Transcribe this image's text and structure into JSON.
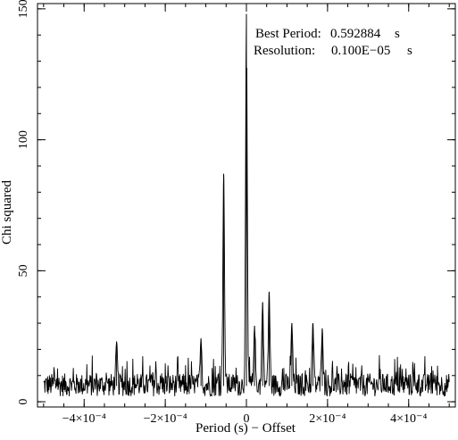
{
  "chart_data": {
    "type": "line",
    "title": "",
    "xlabel": "Period (s) − Offset",
    "ylabel": "Chi squared",
    "xlim": [
      -0.000515,
      0.000515
    ],
    "ylim": [
      -2,
      152
    ],
    "x_ticks": [
      {
        "value": -0.0004,
        "label": "−4×10⁻⁴"
      },
      {
        "value": -0.0002,
        "label": "−2×10⁻⁴"
      },
      {
        "value": 0,
        "label": "0"
      },
      {
        "value": 0.0002,
        "label": "2×10⁻⁴"
      },
      {
        "value": 0.0004,
        "label": "4×10⁻⁴"
      }
    ],
    "y_ticks": [
      {
        "value": 0,
        "label": "0"
      },
      {
        "value": 50,
        "label": "50"
      },
      {
        "value": 100,
        "label": "100"
      },
      {
        "value": 150,
        "label": "150"
      }
    ],
    "grid": false,
    "legend": "none",
    "annotations": [
      {
        "label": "Best Period:",
        "value": "0.592884",
        "unit": "s"
      },
      {
        "label": "Resolution:",
        "value": "0.100E−05",
        "unit": "s"
      }
    ],
    "series": [
      {
        "color": "#000000",
        "x_range": [
          -0.0005,
          0.0005
        ],
        "noise_level": [
          2,
          18
        ],
        "peaks": [
          {
            "x": 0.0,
            "y": 148
          },
          {
            "x": -5.6e-05,
            "y": 87
          },
          {
            "x": 5.6e-05,
            "y": 42
          },
          {
            "x": 4e-05,
            "y": 38
          },
          {
            "x": 0.000164,
            "y": 30
          },
          {
            "x": 0.000112,
            "y": 30
          },
          {
            "x": 2e-05,
            "y": 29
          },
          {
            "x": 0.000187,
            "y": 28
          },
          {
            "x": -0.000112,
            "y": 24
          },
          {
            "x": -0.00032,
            "y": 23
          },
          {
            "x": 0.0,
            "y": 18
          }
        ]
      }
    ]
  }
}
